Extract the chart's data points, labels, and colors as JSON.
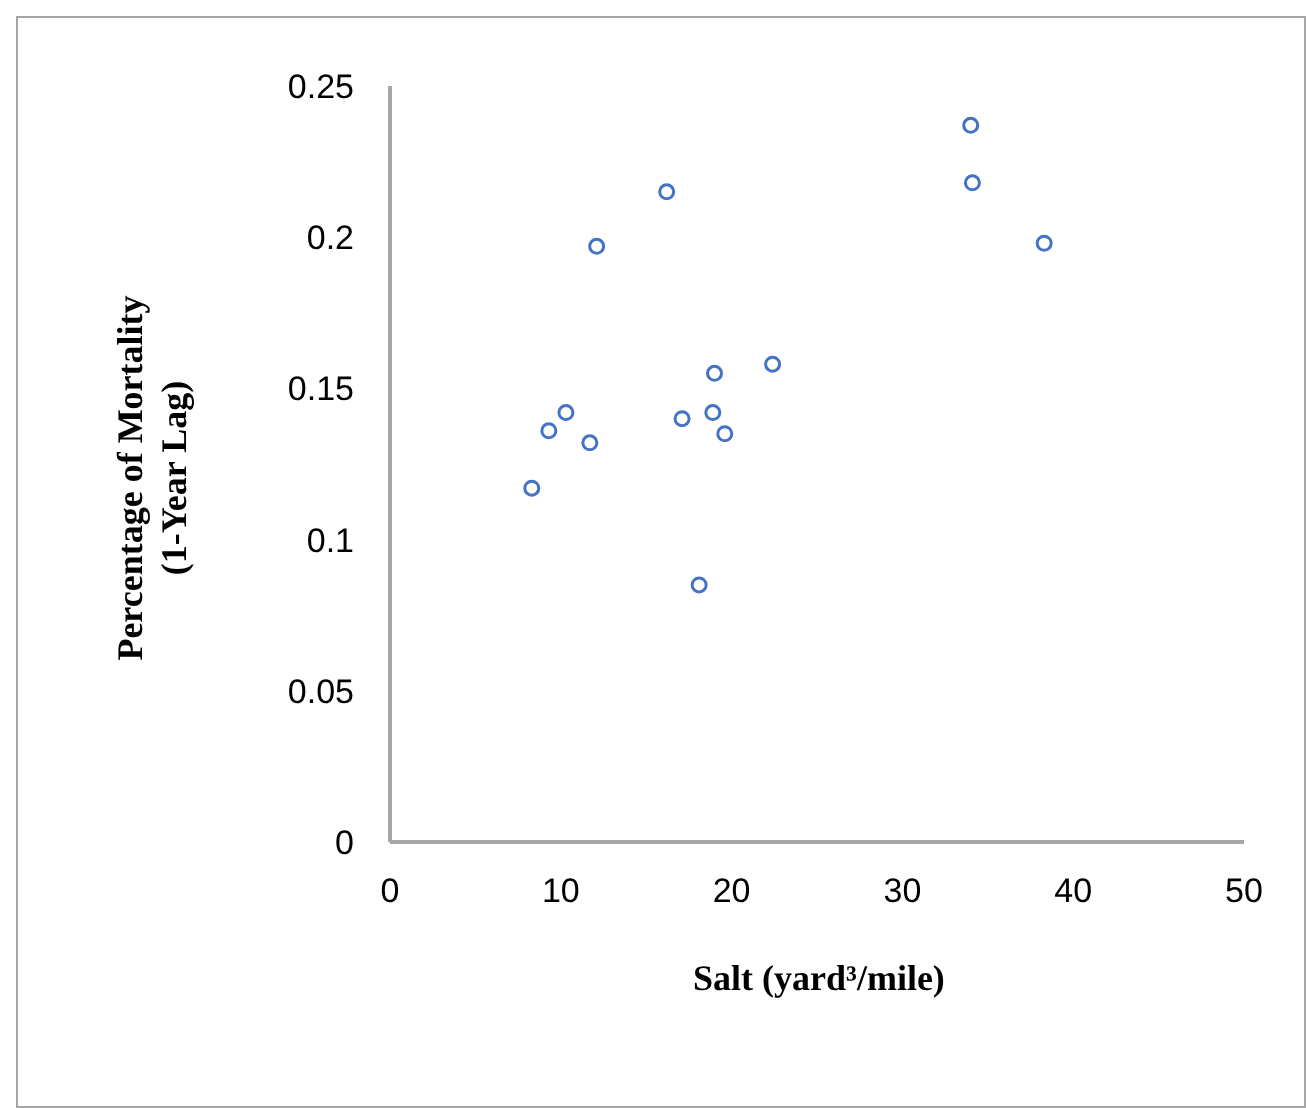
{
  "chart_data": {
    "type": "scatter",
    "xlabel": "Salt (yard³/mile)",
    "ylabel": "Percentage of Mortality\n(1-Year Lag)",
    "x": [
      8.3,
      9.3,
      10.3,
      11.7,
      12.1,
      16.2,
      17.1,
      18.1,
      19.0,
      18.9,
      19.6,
      22.4,
      34.0,
      34.1,
      38.3
    ],
    "series": [
      {
        "color": "#4472c4",
        "values": [
          0.117,
          0.136,
          0.142,
          0.132,
          0.197,
          0.215,
          0.14,
          0.085,
          0.155,
          0.142,
          0.135,
          0.158,
          0.237,
          0.218,
          0.198
        ]
      }
    ],
    "xlim": [
      0,
      50
    ],
    "xticks": [
      0,
      10,
      20,
      30,
      40,
      50
    ],
    "ylim": [
      0,
      0.25
    ],
    "yticks": [
      0,
      0.05,
      0.1,
      0.15,
      0.2,
      0.25
    ],
    "grid": false,
    "marker": "circle"
  }
}
